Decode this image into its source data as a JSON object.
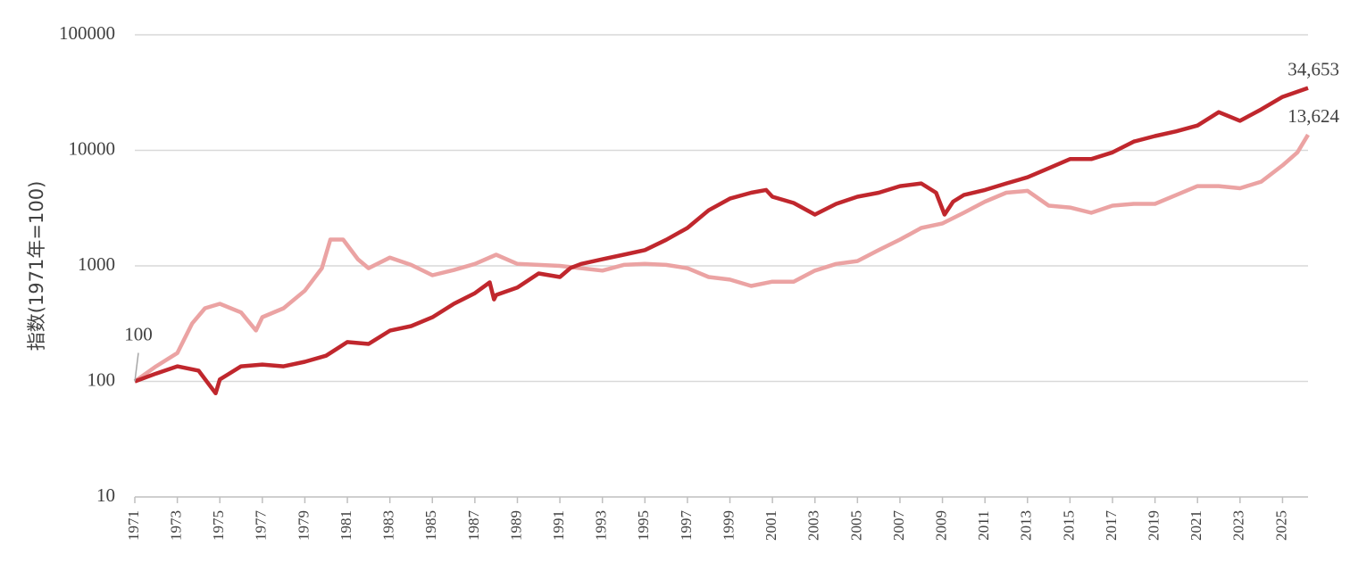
{
  "chart_data": {
    "type": "line",
    "y_label": "指数(1971年=100)",
    "log_y": true,
    "grid": true,
    "xlim": [
      1971,
      2026.2
    ],
    "xticks": [
      1971,
      1973,
      1975,
      1977,
      1979,
      1981,
      1983,
      1985,
      1987,
      1989,
      1991,
      1993,
      1995,
      1997,
      1999,
      2001,
      2003,
      2005,
      2007,
      2009,
      2011,
      2013,
      2015,
      2017,
      2019,
      2021,
      2023,
      2025
    ],
    "ylim": [
      10,
      100000
    ],
    "yticks": [
      10,
      100,
      1000,
      10000,
      100000
    ],
    "series": [
      {
        "color": "#eba3a3",
        "x": [
          1971,
          1972,
          1973,
          1973.7,
          1974.3,
          1975,
          1976,
          1976.7,
          1977,
          1978,
          1979,
          1979.8,
          1980.2,
          1980.8,
          1981.5,
          1982,
          1983,
          1984,
          1985,
          1986,
          1987,
          1988,
          1989,
          1990,
          1991,
          1992,
          1993,
          1994,
          1995,
          1996,
          1997,
          1998,
          1999,
          2000,
          2001,
          2002,
          2003,
          2004,
          2005,
          2006,
          2007,
          2008,
          2009,
          2010,
          2011,
          2012,
          2013,
          2014,
          2015,
          2016,
          2017,
          2018,
          2019,
          2020,
          2021,
          2022,
          2023,
          2024,
          2025,
          2025.7,
          2026.2
        ],
        "values": [
          100,
          135,
          176,
          318,
          430,
          470,
          395,
          276,
          360,
          430,
          610,
          955,
          1690,
          1690,
          1140,
          955,
          1180,
          1020,
          830,
          920,
          1040,
          1250,
          1040,
          1020,
          1000,
          955,
          910,
          1020,
          1040,
          1020,
          955,
          800,
          760,
          670,
          730,
          730,
          910,
          1040,
          1100,
          1370,
          1690,
          2130,
          2330,
          2880,
          3600,
          4300,
          4460,
          3320,
          3200,
          2880,
          3320,
          3440,
          3440,
          4100,
          4900,
          4900,
          4700,
          5360,
          7400,
          9600,
          13624
        ]
      },
      {
        "color": "#c0272d",
        "x": [
          1971,
          1972,
          1973,
          1974,
          1974.8,
          1975,
          1976,
          1977,
          1978,
          1979,
          1980,
          1981,
          1982,
          1983,
          1984,
          1985,
          1986,
          1987,
          1987.7,
          1987.9,
          1988,
          1989,
          1990,
          1991,
          1991.5,
          1992,
          1993,
          1994,
          1995,
          1996,
          1997,
          1998,
          1999,
          2000,
          2000.7,
          2001,
          2002,
          2003,
          2004,
          2005,
          2006,
          2007,
          2008,
          2008.7,
          2009.1,
          2009.5,
          2010,
          2011,
          2012,
          2013,
          2014,
          2015,
          2016,
          2017,
          2018,
          2019,
          2020,
          2021,
          2022,
          2023,
          2024,
          2025,
          2026.2
        ],
        "values": [
          100,
          117,
          135,
          124,
          79,
          104,
          135,
          140,
          135,
          148,
          167,
          219,
          211,
          275,
          301,
          359,
          469,
          580,
          720,
          512,
          560,
          650,
          860,
          800,
          960,
          1040,
          1140,
          1250,
          1370,
          1680,
          2130,
          3030,
          3820,
          4300,
          4540,
          3970,
          3500,
          2780,
          3440,
          3970,
          4300,
          4900,
          5170,
          4300,
          2780,
          3600,
          4100,
          4540,
          5170,
          5850,
          7000,
          8400,
          8400,
          9600,
          11900,
          13300,
          14600,
          16400,
          21400,
          18000,
          22600,
          29000,
          34653
        ]
      }
    ],
    "annotations": [
      {
        "text": "100",
        "x": 1971,
        "y": 100
      },
      {
        "text": "34,653",
        "x": 2026.2,
        "y": 34653
      },
      {
        "text": "13,624",
        "x": 2026.2,
        "y": 13624
      }
    ]
  }
}
